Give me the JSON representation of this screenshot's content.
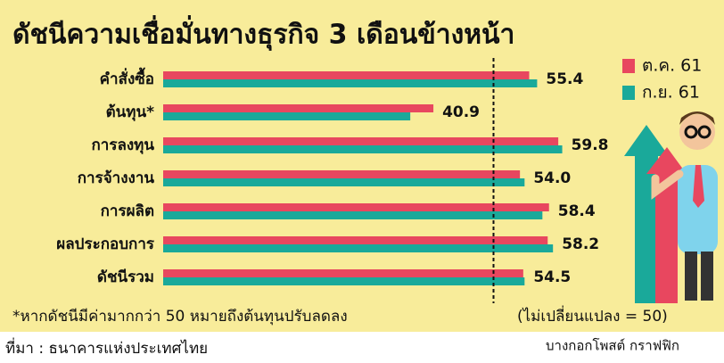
{
  "chart_data": {
    "type": "hbar",
    "title": "ดัชนีความเชื่อมั่นทางธุรกิจ 3 เดือนข้างหน้า",
    "categories": [
      "คำสั่งซื้อ",
      "ต้นทุน*",
      "การลงทุน",
      "การจ้างงาน",
      "การผลิต",
      "ผลประกอบการ",
      "ดัชนีรวม"
    ],
    "series": [
      {
        "name": "ต.ค. 61",
        "color": "#e8475f",
        "values": [
          55.4,
          40.9,
          59.8,
          54.0,
          58.4,
          58.2,
          54.5
        ],
        "value_labels": [
          "55.4",
          "40.9",
          "59.8",
          "54.0",
          "58.4",
          "58.2",
          "54.5"
        ]
      },
      {
        "name": "ก.ย. 61",
        "color": "#1aa99a",
        "values": [
          56.6,
          37.4,
          60.4,
          54.7,
          57.4,
          59.0,
          54.7
        ]
      }
    ],
    "xlim": [
      0,
      80
    ],
    "reference_line": 50,
    "footnote": "*หากดัชนีมีค่ามากกว่า 50 หมายถึงต้นทุนปรับลดลง",
    "footnote_2": "(ไม่เปลี่ยนแปลง = 50)",
    "source": "ที่มา : ธนาคารแห่งประเทศไทย",
    "credit": "บางกอกโพสต์ กราฟฟิก",
    "legend": "top-right"
  }
}
